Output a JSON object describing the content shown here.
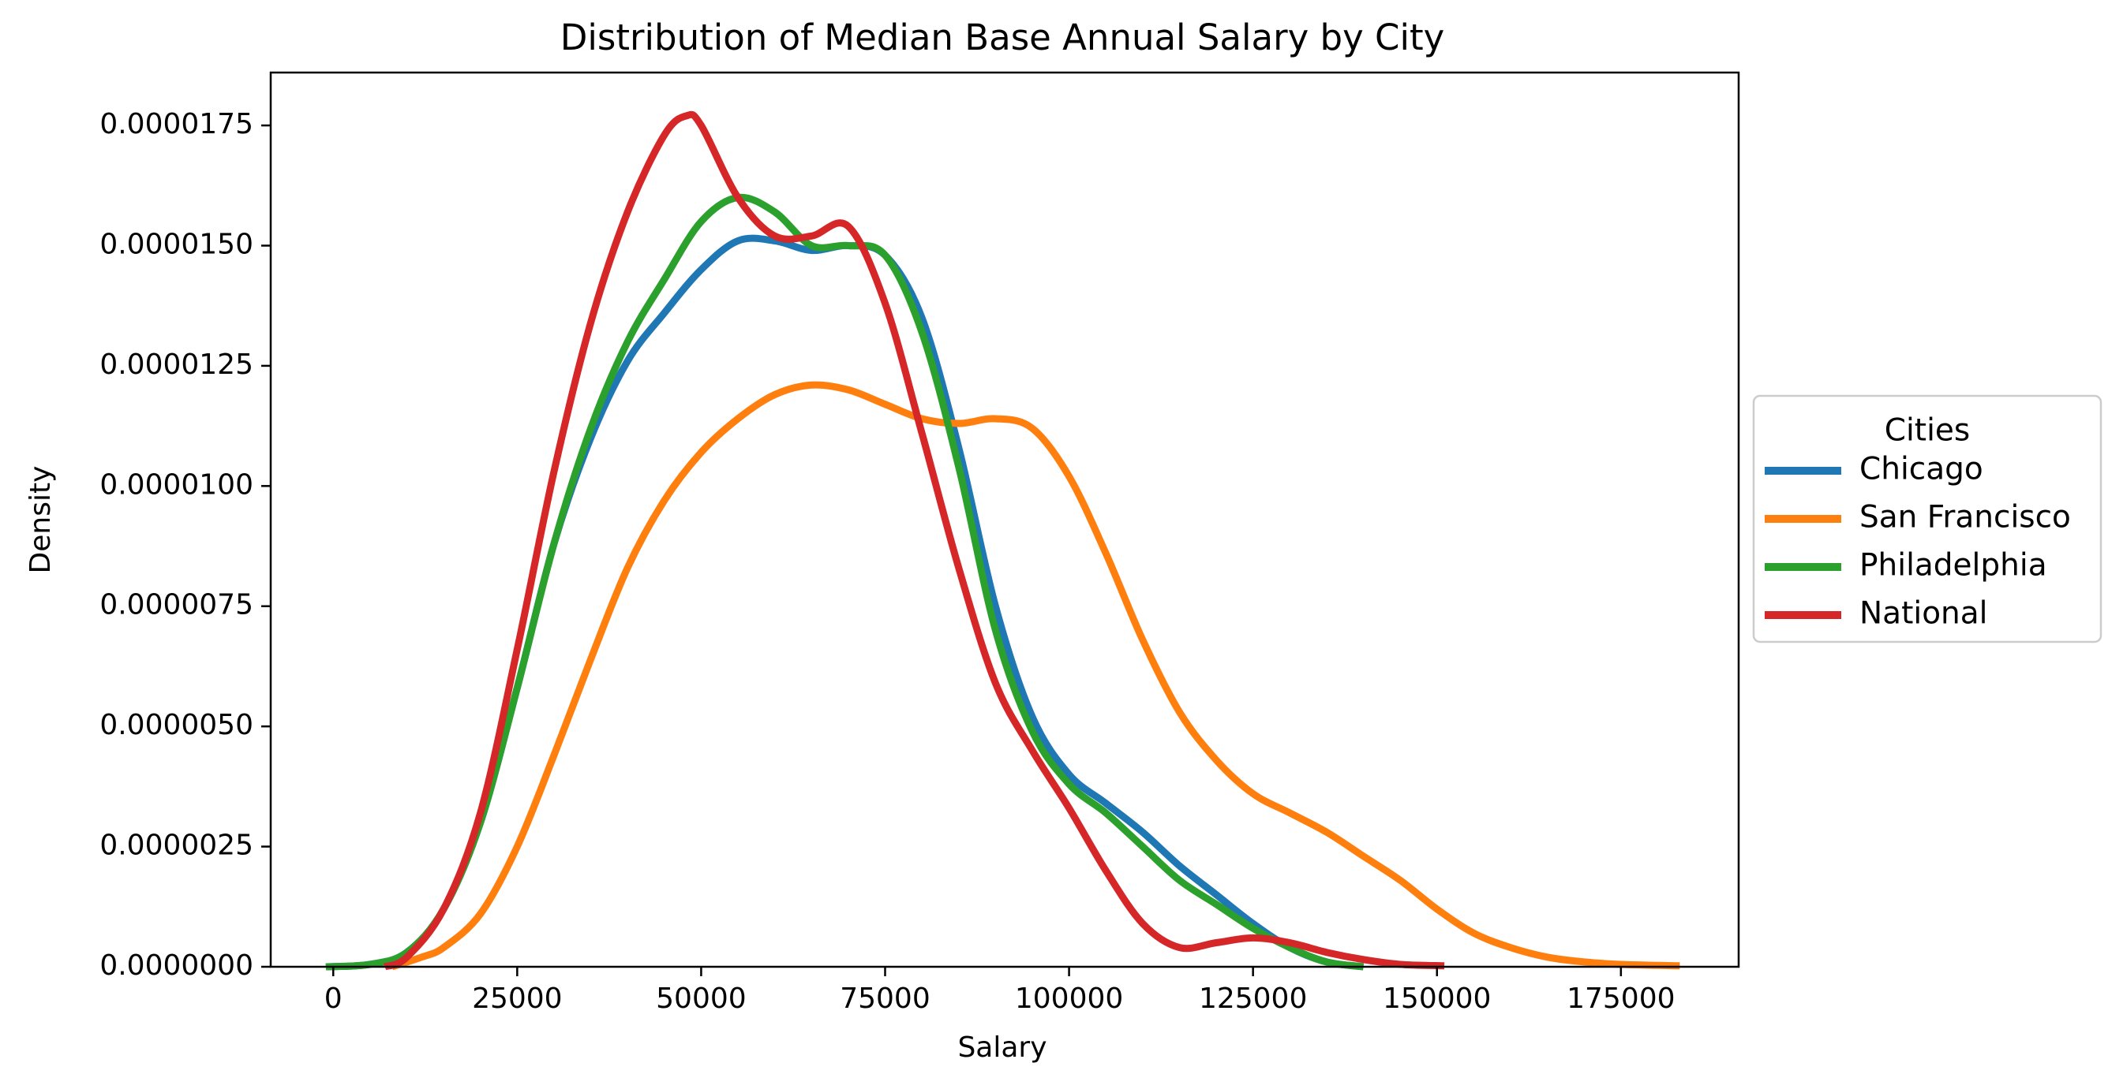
{
  "chart_data": {
    "type": "line",
    "title": "Distribution of Median Base Annual Salary by City",
    "xlabel": "Salary",
    "ylabel": "Density",
    "xlim": [
      -8500,
      191000
    ],
    "ylim": [
      0,
      1.86e-05
    ],
    "x_ticks": [
      0,
      25000,
      50000,
      75000,
      100000,
      125000,
      150000,
      175000
    ],
    "x_tick_labels": [
      "0",
      "25000",
      "50000",
      "75000",
      "100000",
      "125000",
      "150000",
      "175000"
    ],
    "y_ticks": [
      0,
      2.5e-06,
      5e-06,
      7.5e-06,
      1e-05,
      1.25e-05,
      1.5e-05,
      1.75e-05
    ],
    "y_tick_labels": [
      "0.0000000",
      "0.0000025",
      "0.0000050",
      "0.0000075",
      "0.0000100",
      "0.0000125",
      "0.0000150",
      "0.0000175"
    ],
    "grid": false,
    "legend": {
      "title": "Cities",
      "placement": "outside-right"
    },
    "series": [
      {
        "name": "Chicago",
        "color": "#1f77b4",
        "points": [
          [
            -1000,
            0
          ],
          [
            5000,
            5e-08
          ],
          [
            10000,
            3e-07
          ],
          [
            15000,
            1.2e-06
          ],
          [
            20000,
            3e-06
          ],
          [
            25000,
            5.8e-06
          ],
          [
            30000,
            8.8e-06
          ],
          [
            35000,
            1.1e-05
          ],
          [
            40000,
            1.26e-05
          ],
          [
            45000,
            1.36e-05
          ],
          [
            50000,
            1.45e-05
          ],
          [
            55000,
            1.51e-05
          ],
          [
            60000,
            1.51e-05
          ],
          [
            65000,
            1.49e-05
          ],
          [
            70000,
            1.5e-05
          ],
          [
            75000,
            1.48e-05
          ],
          [
            80000,
            1.35e-05
          ],
          [
            85000,
            1.08e-05
          ],
          [
            90000,
            7.5e-06
          ],
          [
            95000,
            5.2e-06
          ],
          [
            100000,
            4e-06
          ],
          [
            105000,
            3.4e-06
          ],
          [
            110000,
            2.8e-06
          ],
          [
            115000,
            2.1e-06
          ],
          [
            120000,
            1.5e-06
          ],
          [
            125000,
            9e-07
          ],
          [
            130000,
            4e-07
          ],
          [
            135000,
            1e-07
          ],
          [
            140000,
            0
          ]
        ]
      },
      {
        "name": "San Francisco",
        "color": "#ff7f0e",
        "points": [
          [
            8000,
            0
          ],
          [
            12000,
            2e-07
          ],
          [
            15000,
            4e-07
          ],
          [
            20000,
            1.1e-06
          ],
          [
            25000,
            2.5e-06
          ],
          [
            30000,
            4.4e-06
          ],
          [
            35000,
            6.4e-06
          ],
          [
            40000,
            8.3e-06
          ],
          [
            45000,
            9.7e-06
          ],
          [
            50000,
            1.07e-05
          ],
          [
            55000,
            1.14e-05
          ],
          [
            60000,
            1.19e-05
          ],
          [
            65000,
            1.21e-05
          ],
          [
            70000,
            1.2e-05
          ],
          [
            75000,
            1.17e-05
          ],
          [
            80000,
            1.14e-05
          ],
          [
            85000,
            1.13e-05
          ],
          [
            90000,
            1.14e-05
          ],
          [
            95000,
            1.12e-05
          ],
          [
            100000,
            1.02e-05
          ],
          [
            105000,
            8.6e-06
          ],
          [
            110000,
            6.8e-06
          ],
          [
            115000,
            5.3e-06
          ],
          [
            120000,
            4.3e-06
          ],
          [
            125000,
            3.6e-06
          ],
          [
            130000,
            3.2e-06
          ],
          [
            135000,
            2.8e-06
          ],
          [
            140000,
            2.3e-06
          ],
          [
            145000,
            1.8e-06
          ],
          [
            150000,
            1.2e-06
          ],
          [
            155000,
            7e-07
          ],
          [
            160000,
            4e-07
          ],
          [
            165000,
            2e-07
          ],
          [
            170000,
            1e-07
          ],
          [
            175000,
            5e-08
          ],
          [
            183000,
            2e-08
          ]
        ]
      },
      {
        "name": "Philadelphia",
        "color": "#2ca02c",
        "points": [
          [
            -1000,
            0
          ],
          [
            5000,
            5e-08
          ],
          [
            10000,
            3e-07
          ],
          [
            15000,
            1.2e-06
          ],
          [
            20000,
            3e-06
          ],
          [
            25000,
            5.8e-06
          ],
          [
            30000,
            8.8e-06
          ],
          [
            35000,
            1.12e-05
          ],
          [
            40000,
            1.3e-05
          ],
          [
            45000,
            1.43e-05
          ],
          [
            50000,
            1.55e-05
          ],
          [
            55000,
            1.6e-05
          ],
          [
            60000,
            1.57e-05
          ],
          [
            65000,
            1.5e-05
          ],
          [
            70000,
            1.5e-05
          ],
          [
            75000,
            1.48e-05
          ],
          [
            80000,
            1.32e-05
          ],
          [
            85000,
            1.04e-05
          ],
          [
            90000,
            7e-06
          ],
          [
            95000,
            4.9e-06
          ],
          [
            100000,
            3.8e-06
          ],
          [
            105000,
            3.2e-06
          ],
          [
            110000,
            2.5e-06
          ],
          [
            115000,
            1.8e-06
          ],
          [
            120000,
            1.3e-06
          ],
          [
            125000,
            8e-07
          ],
          [
            130000,
            4e-07
          ],
          [
            135000,
            1e-07
          ],
          [
            140000,
            0
          ]
        ]
      },
      {
        "name": "National",
        "color": "#d62728",
        "points": [
          [
            7000,
            0
          ],
          [
            10000,
            2e-07
          ],
          [
            15000,
            1.2e-06
          ],
          [
            20000,
            3.2e-06
          ],
          [
            25000,
            6.6e-06
          ],
          [
            30000,
            1.03e-05
          ],
          [
            35000,
            1.34e-05
          ],
          [
            40000,
            1.57e-05
          ],
          [
            45000,
            1.73e-05
          ],
          [
            48000,
            1.77e-05
          ],
          [
            50000,
            1.75e-05
          ],
          [
            55000,
            1.6e-05
          ],
          [
            60000,
            1.52e-05
          ],
          [
            65000,
            1.52e-05
          ],
          [
            70000,
            1.54e-05
          ],
          [
            75000,
            1.38e-05
          ],
          [
            80000,
            1.11e-05
          ],
          [
            85000,
            8.3e-06
          ],
          [
            90000,
            5.9e-06
          ],
          [
            95000,
            4.5e-06
          ],
          [
            100000,
            3.3e-06
          ],
          [
            105000,
            2e-06
          ],
          [
            110000,
            9e-07
          ],
          [
            115000,
            4e-07
          ],
          [
            120000,
            5e-07
          ],
          [
            125000,
            6e-07
          ],
          [
            130000,
            5e-07
          ],
          [
            135000,
            3e-07
          ],
          [
            140000,
            1.5e-07
          ],
          [
            145000,
            5e-08
          ],
          [
            151000,
            2e-08
          ]
        ]
      }
    ]
  }
}
